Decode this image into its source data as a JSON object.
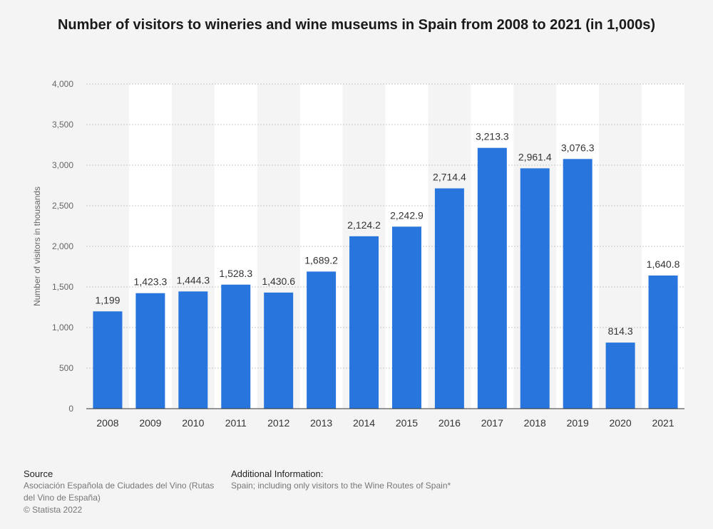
{
  "chart_data": {
    "type": "bar",
    "title": "Number of visitors to wineries and wine museums in Spain from 2008 to 2021 (in 1,000s)",
    "xlabel": "",
    "ylabel": "Number of visitors in thousands",
    "ylim": [
      0,
      4000
    ],
    "yticks": [
      0,
      500,
      1000,
      1500,
      2000,
      2500,
      3000,
      3500,
      4000
    ],
    "ytick_labels": [
      "0",
      "500",
      "1,000",
      "1,500",
      "2,000",
      "2,500",
      "3,000",
      "3,500",
      "4,000"
    ],
    "grid": true,
    "bar_color": "#2876dd",
    "categories": [
      "2008",
      "2009",
      "2010",
      "2011",
      "2012",
      "2013",
      "2014",
      "2015",
      "2016",
      "2017",
      "2018",
      "2019",
      "2020",
      "2021"
    ],
    "values": [
      1199,
      1423.3,
      1444.3,
      1528.3,
      1430.6,
      1689.2,
      2124.2,
      2242.9,
      2714.4,
      3213.3,
      2961.4,
      3076.3,
      814.3,
      1640.8
    ],
    "value_labels": [
      "1,199",
      "1,423.3",
      "1,444.3",
      "1,528.3",
      "1,430.6",
      "1,689.2",
      "2,124.2",
      "2,242.9",
      "2,714.4",
      "3,213.3",
      "2,961.4",
      "3,076.3",
      "814.3",
      "1,640.8"
    ]
  },
  "footer": {
    "source_heading": "Source",
    "source_text": "Asociación Española de Ciudades del Vino (Rutas del Vino de España)",
    "copyright": "© Statista 2022",
    "info_heading": "Additional Information:",
    "info_text": "Spain; including only visitors to the Wine Routes of Spain*"
  }
}
